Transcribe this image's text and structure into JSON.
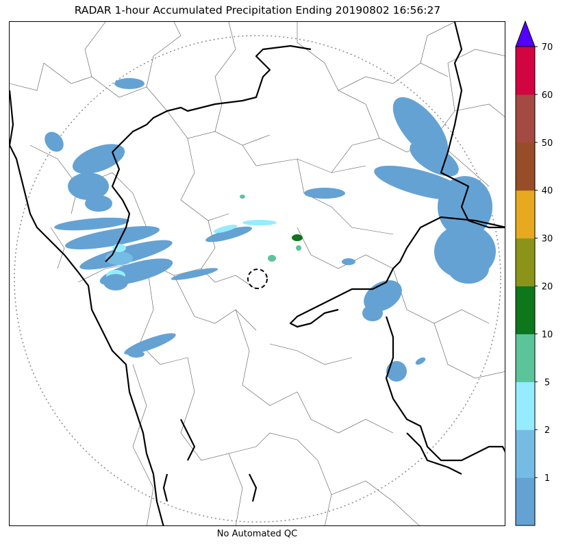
{
  "title": "RADAR 1-hour Accumulated Precipitation Ending 20190802 16:56:27",
  "caption": "No Automated QC",
  "colorbar": {
    "ticks": [
      "1",
      "2",
      "5",
      "10",
      "20",
      "30",
      "40",
      "50",
      "60",
      "70"
    ],
    "bins": [
      {
        "color": "#64a2d4"
      },
      {
        "color": "#75bce4"
      },
      {
        "color": "#95ecff"
      },
      {
        "color": "#5bc49a"
      },
      {
        "color": "#0e761b"
      },
      {
        "color": "#8b9418"
      },
      {
        "color": "#e6a91f"
      },
      {
        "color": "#974d27"
      },
      {
        "color": "#a44943"
      },
      {
        "color": "#d30442"
      }
    ],
    "extend_color": "#5300ff"
  },
  "map": {
    "range_ring": "dotted-gray",
    "radar_site_marker": "dashed-circle",
    "coastline_color": "#000000",
    "border_color": "#000000",
    "district_color": "#555555",
    "precip_color_light": "#64a2d4",
    "precip_color_mid": "#75bce4",
    "precip_color_cyan": "#95ecff"
  }
}
